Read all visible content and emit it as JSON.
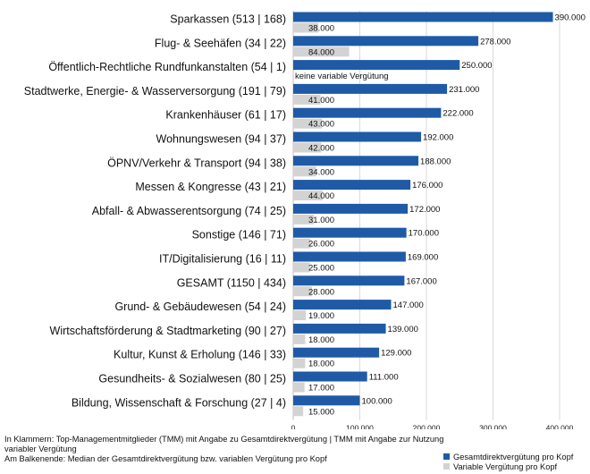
{
  "colors": {
    "total": "#1f5aa6",
    "variable": "#d3d3d3"
  },
  "chart_data": {
    "type": "bar",
    "orientation": "horizontal",
    "categories": [
      "Sparkassen (513 | 168)",
      "Flug- & Seehäfen (34 | 22)",
      "Öffentlich-Rechtliche Rundfunkanstalten (54 | 1)",
      "Stadtwerke, Energie- & Wasserversorgung  (191 | 79)",
      "Krankenhäuser (61 | 17)",
      "Wohnungswesen (94 | 37)",
      "ÖPNV/Verkehr & Transport (94 | 38)",
      "Messen & Kongresse (43 | 21)",
      "Abfall- & Abwasserentsorgung (74 | 25)",
      "Sonstige (146 | 71)",
      "IT/Digitalisierung (16 | 11)",
      "GESAMT (1150 | 434)",
      "Grund- & Gebäudewesen (54 | 24)",
      "Wirtschaftsförderung & Stadtmarketing (90 | 27)",
      "Kultur, Kunst & Erholung (146 | 33)",
      "Gesundheits- & Sozialwesen (80 | 25)",
      "Bildung, Wissenschaft & Forschung (27 | 4)"
    ],
    "series": [
      {
        "name": "Gesamtdirektvergütung pro Kopf",
        "values": [
          390000,
          278000,
          250000,
          231000,
          222000,
          192000,
          188000,
          176000,
          172000,
          170000,
          169000,
          167000,
          147000,
          139000,
          129000,
          111000,
          100000
        ],
        "labels": [
          "390.000",
          "278.000",
          "250.000",
          "231.000",
          "222.000",
          "192.000",
          "188.000",
          "176.000",
          "172.000",
          "170.000",
          "169.000",
          "167.000",
          "147.000",
          "139.000",
          "129.000",
          "111.000",
          "100.000"
        ]
      },
      {
        "name": "Variable Vergütung pro Kopf",
        "values": [
          38000,
          84000,
          null,
          41000,
          43000,
          42000,
          34000,
          44000,
          31000,
          26000,
          25000,
          28000,
          19000,
          18000,
          18000,
          17000,
          15000
        ],
        "labels": [
          "38.000",
          "84.000",
          "keine variable Vergütung",
          "41.000",
          "43.000",
          "42.000",
          "34.000",
          "44.000",
          "31.000",
          "26.000",
          "25.000",
          "28.000",
          "19.000",
          "18.000",
          "18.000",
          "17.000",
          "15.000"
        ]
      }
    ],
    "xlim": [
      0,
      400000
    ],
    "xticks": [
      0,
      100000,
      200000,
      300000,
      400000
    ],
    "xtick_labels": [
      "0",
      "100.000",
      "200.000",
      "300.000",
      "400.000"
    ],
    "grid": true,
    "legend_position": "bottom-right"
  },
  "footnotes": {
    "line1": "In Klammern: Top-Managementmitglieder (TMM) mit Angabe zu Gesamtdirektvergütung | TMM mit Angabe zur Nutzung",
    "line2": "variabler Vergütung",
    "line3": "Am Balkenende: Median der Gesamtdirektvergütung bzw. variablen Vergütung pro Kopf"
  }
}
